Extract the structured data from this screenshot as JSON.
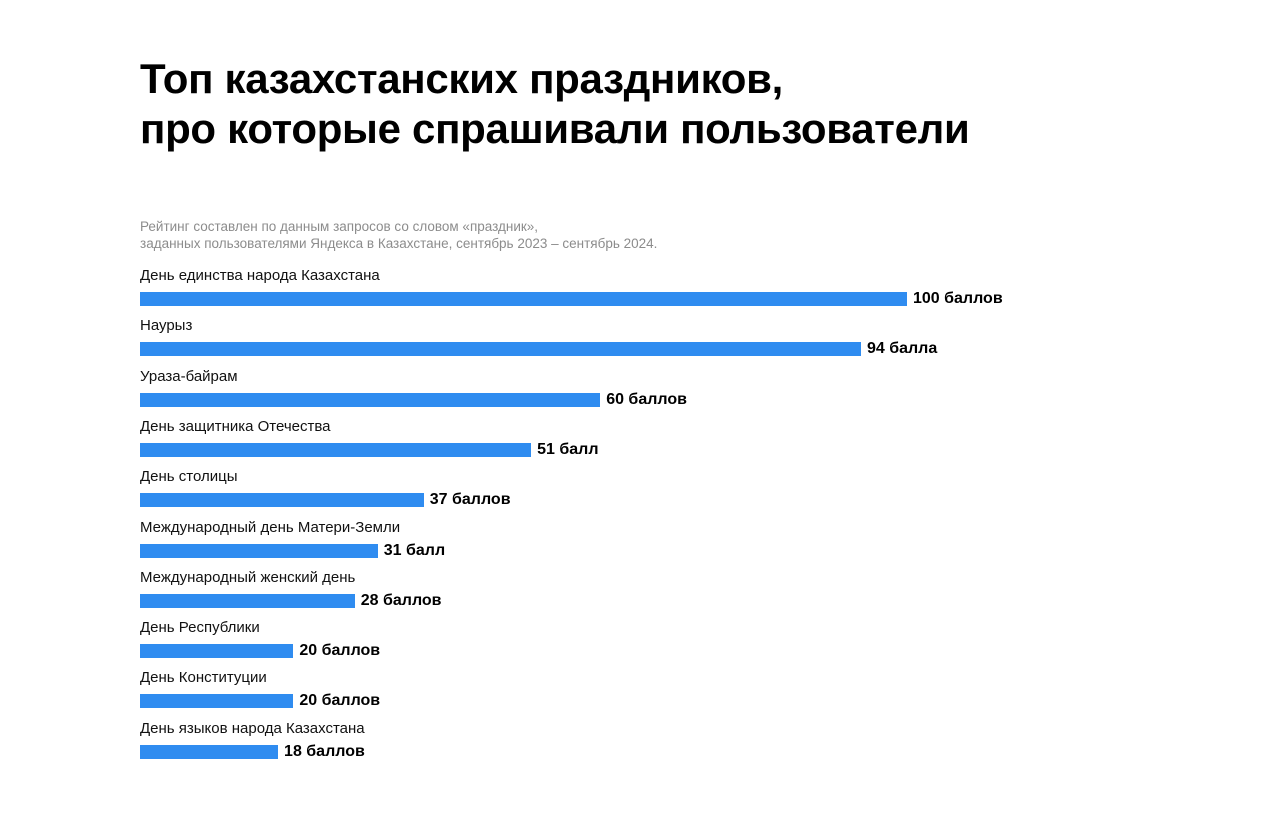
{
  "chart_data": {
    "type": "bar",
    "orientation": "horizontal",
    "title": [
      "Топ казахстанских праздников,",
      "про которые спрашивали пользователи"
    ],
    "subtitle": [
      "Рейтинг составлен по данным запросов со словом «праздник»,",
      "заданных пользователями Яндекса в Казахстане, сентябрь 2023 – сентябрь 2024."
    ],
    "categories": [
      "День единства народа Казахстана",
      "Наурыз",
      "Ураза-байрам",
      "День защитника Отечества",
      "День столицы",
      "Международный день Матери-Земли",
      "Международный женский день",
      "День Республики",
      "День Конституции",
      "День языков народа Казахстана"
    ],
    "values": [
      100,
      94,
      60,
      51,
      37,
      31,
      28,
      20,
      20,
      18
    ],
    "value_labels": [
      "100 баллов",
      "94 балла",
      "60 баллов",
      "51 балл",
      "37 баллов",
      "31 балл",
      "28 баллов",
      "20 баллов",
      "20 баллов",
      "18 баллов"
    ],
    "xlim": [
      0,
      100
    ],
    "grid": false,
    "legend": "none",
    "bar_color": "#2f8cf0"
  }
}
